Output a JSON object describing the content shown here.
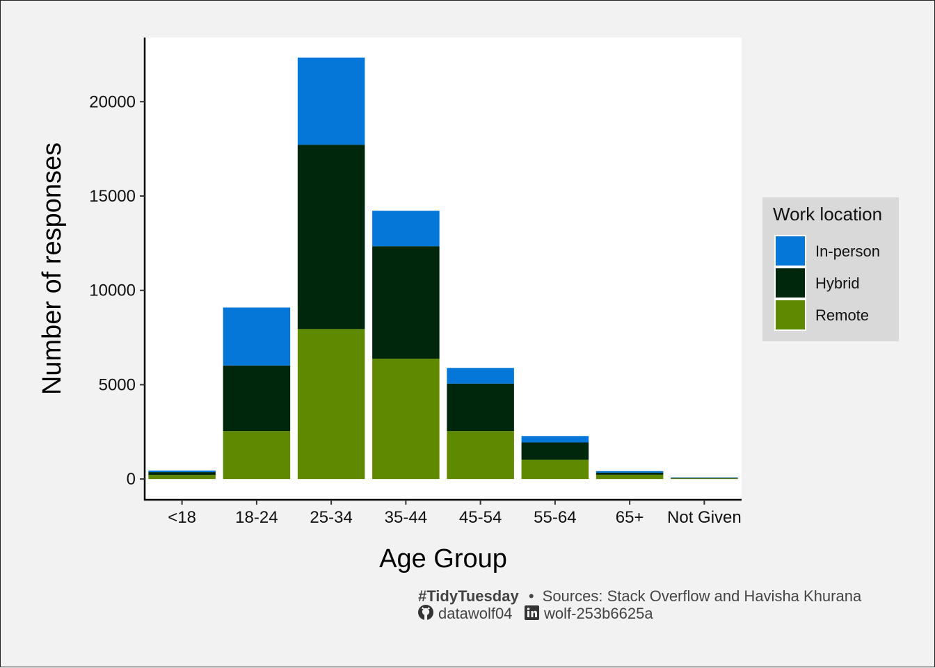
{
  "chart_data": {
    "type": "bar",
    "stacked": true,
    "categories": [
      "<18",
      "18-24",
      "25-34",
      "35-44",
      "45-54",
      "55-64",
      "65+",
      "Not Given"
    ],
    "series": [
      {
        "name": "Remote",
        "color": "#5f8a00",
        "values": [
          220,
          2540,
          7950,
          6380,
          2540,
          1020,
          230,
          30
        ]
      },
      {
        "name": "Hybrid",
        "color": "#00260c",
        "values": [
          150,
          3480,
          9770,
          5960,
          2520,
          920,
          110,
          30
        ]
      },
      {
        "name": "In-person",
        "color": "#0477d9",
        "values": [
          80,
          3070,
          4620,
          1880,
          830,
          340,
          80,
          20
        ]
      }
    ],
    "xlabel": "Age Group",
    "ylabel": "Number of responses",
    "ylim": [
      -1100,
      23400
    ],
    "yticks": [
      0,
      5000,
      10000,
      15000,
      20000
    ],
    "ytick_labels": [
      "0",
      "5000",
      "10000",
      "15000",
      "20000"
    ],
    "legend": {
      "title": "Work location",
      "placement": "right",
      "order": [
        "In-person",
        "Hybrid",
        "Remote"
      ]
    },
    "grid": false
  },
  "caption": {
    "hashtag": "#TidyTuesday",
    "bullet": "•",
    "sources": "Sources: Stack Overflow and Havisha Khurana",
    "github_icon": "github-icon",
    "github_handle": "datawolf04",
    "linkedin_icon": "linkedin-icon",
    "linkedin_handle": "wolf-253b6625a"
  }
}
